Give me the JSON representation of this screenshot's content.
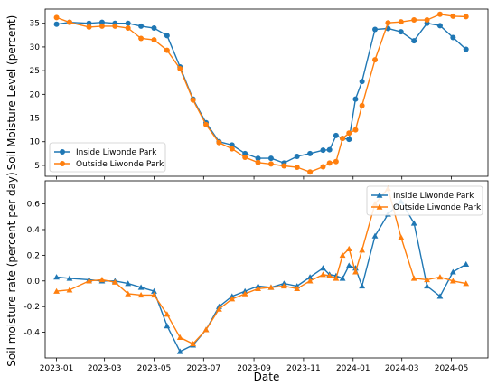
{
  "colors": {
    "inside": "#1f77b4",
    "outside": "#ff7f0e"
  },
  "chart_data": [
    {
      "type": "line",
      "title": "",
      "xlabel": "",
      "ylabel": "Soil Moisture Level (percent)",
      "xlim": [
        "2022-12-18",
        "2024-06-15"
      ],
      "ylim": [
        2.7,
        38.0
      ],
      "yticks": [
        5,
        10,
        15,
        20,
        25,
        30,
        35
      ],
      "xticks": [
        "2023-01",
        "2023-03",
        "2023-05",
        "2023-07",
        "2023-09",
        "2023-11",
        "2024-01",
        "2024-03",
        "2024-05"
      ],
      "show_xticklabels": false,
      "grid": false,
      "legend_position": "lower-left",
      "series": [
        {
          "name": "Inside Liwonde Park",
          "marker": "circle",
          "x": [
            "2023-01-01",
            "2023-01-17",
            "2023-02-10",
            "2023-02-26",
            "2023-03-14",
            "2023-03-30",
            "2023-04-15",
            "2023-05-01",
            "2023-05-17",
            "2023-06-02",
            "2023-06-18",
            "2023-07-04",
            "2023-07-20",
            "2023-08-05",
            "2023-08-21",
            "2023-09-06",
            "2023-09-22",
            "2023-10-08",
            "2023-10-24",
            "2023-11-09",
            "2023-11-25",
            "2023-12-03",
            "2023-12-11",
            "2023-12-19",
            "2023-12-27",
            "2024-01-04",
            "2024-01-12",
            "2024-01-28",
            "2024-02-13",
            "2024-02-29",
            "2024-03-16",
            "2024-04-01",
            "2024-04-17",
            "2024-05-03",
            "2024-05-19"
          ],
          "y": [
            34.8,
            35.2,
            35.0,
            35.2,
            35.0,
            35.0,
            34.4,
            34.0,
            32.4,
            25.8,
            19.0,
            14.0,
            10.0,
            9.3,
            7.5,
            6.5,
            6.5,
            5.5,
            6.9,
            7.5,
            8.2,
            8.3,
            11.3,
            10.7,
            10.5,
            19.0,
            22.7,
            33.7,
            33.9,
            33.2,
            31.3,
            35.0,
            34.5,
            32.0,
            29.5
          ]
        },
        {
          "name": "Outside Liwonde Park",
          "marker": "circle",
          "x": [
            "2023-01-01",
            "2023-01-17",
            "2023-02-10",
            "2023-02-26",
            "2023-03-14",
            "2023-03-30",
            "2023-04-15",
            "2023-05-01",
            "2023-05-17",
            "2023-06-02",
            "2023-06-18",
            "2023-07-04",
            "2023-07-20",
            "2023-08-05",
            "2023-08-21",
            "2023-09-06",
            "2023-09-22",
            "2023-10-08",
            "2023-10-24",
            "2023-11-09",
            "2023-11-25",
            "2023-12-03",
            "2023-12-11",
            "2023-12-19",
            "2023-12-27",
            "2024-01-04",
            "2024-01-12",
            "2024-01-28",
            "2024-02-13",
            "2024-02-29",
            "2024-03-16",
            "2024-04-01",
            "2024-04-17",
            "2024-05-03",
            "2024-05-19"
          ],
          "y": [
            36.2,
            35.2,
            34.2,
            34.4,
            34.4,
            34.0,
            31.8,
            31.5,
            29.3,
            25.4,
            18.8,
            13.6,
            9.8,
            8.5,
            6.7,
            5.6,
            5.3,
            4.9,
            4.6,
            3.6,
            4.7,
            5.5,
            5.8,
            10.7,
            11.8,
            12.5,
            17.6,
            27.3,
            35.1,
            35.3,
            35.7,
            35.7,
            36.9,
            36.5,
            36.4
          ]
        }
      ]
    },
    {
      "type": "line",
      "title": "",
      "xlabel": "Date",
      "ylabel": "Soil moisture rate (percent per day)",
      "xlim": [
        "2022-12-18",
        "2024-06-15"
      ],
      "ylim": [
        -0.6,
        0.78
      ],
      "yticks": [
        -0.4,
        -0.2,
        0.0,
        0.2,
        0.4,
        0.6
      ],
      "xticks": [
        "2023-01",
        "2023-03",
        "2023-05",
        "2023-07",
        "2023-09",
        "2023-11",
        "2024-01",
        "2024-03",
        "2024-05"
      ],
      "show_xticklabels": true,
      "grid": false,
      "legend_position": "upper-right",
      "series": [
        {
          "name": "Inside Liwonde Park",
          "marker": "triangle",
          "x": [
            "2023-01-01",
            "2023-01-17",
            "2023-02-10",
            "2023-02-26",
            "2023-03-14",
            "2023-03-30",
            "2023-04-15",
            "2023-05-01",
            "2023-05-17",
            "2023-06-02",
            "2023-06-18",
            "2023-07-04",
            "2023-07-20",
            "2023-08-05",
            "2023-08-21",
            "2023-09-06",
            "2023-09-22",
            "2023-10-08",
            "2023-10-24",
            "2023-11-09",
            "2023-11-25",
            "2023-12-03",
            "2023-12-11",
            "2023-12-19",
            "2023-12-27",
            "2024-01-04",
            "2024-01-12",
            "2024-01-28",
            "2024-02-13",
            "2024-02-29",
            "2024-03-16",
            "2024-04-01",
            "2024-04-17",
            "2024-05-03",
            "2024-05-19"
          ],
          "y": [
            0.03,
            0.02,
            0.01,
            0.0,
            0.0,
            -0.02,
            -0.05,
            -0.08,
            -0.35,
            -0.55,
            -0.5,
            -0.38,
            -0.2,
            -0.12,
            -0.08,
            -0.04,
            -0.05,
            -0.02,
            -0.04,
            0.03,
            0.1,
            0.05,
            0.04,
            0.02,
            0.12,
            0.1,
            -0.04,
            0.35,
            0.52,
            0.62,
            0.45,
            -0.04,
            -0.12,
            0.07,
            0.13
          ]
        },
        {
          "name": "Outside Liwonde Park",
          "marker": "triangle",
          "x": [
            "2023-01-01",
            "2023-01-17",
            "2023-02-10",
            "2023-02-26",
            "2023-03-14",
            "2023-03-30",
            "2023-04-15",
            "2023-05-01",
            "2023-05-17",
            "2023-06-02",
            "2023-06-18",
            "2023-07-04",
            "2023-07-20",
            "2023-08-05",
            "2023-08-21",
            "2023-09-06",
            "2023-09-22",
            "2023-10-08",
            "2023-10-24",
            "2023-11-09",
            "2023-11-25",
            "2023-12-03",
            "2023-12-11",
            "2023-12-19",
            "2023-12-27",
            "2024-01-04",
            "2024-01-12",
            "2024-01-28",
            "2024-02-13",
            "2024-02-29",
            "2024-03-16",
            "2024-04-01",
            "2024-04-17",
            "2024-05-03",
            "2024-05-19"
          ],
          "y": [
            -0.08,
            -0.07,
            0.0,
            0.01,
            -0.01,
            -0.1,
            -0.11,
            -0.11,
            -0.26,
            -0.44,
            -0.49,
            -0.38,
            -0.22,
            -0.14,
            -0.1,
            -0.06,
            -0.05,
            -0.04,
            -0.06,
            0.0,
            0.05,
            0.04,
            0.02,
            0.2,
            0.25,
            0.07,
            0.24,
            0.6,
            0.72,
            0.34,
            0.02,
            0.01,
            0.03,
            0.0,
            -0.02
          ]
        }
      ]
    }
  ]
}
